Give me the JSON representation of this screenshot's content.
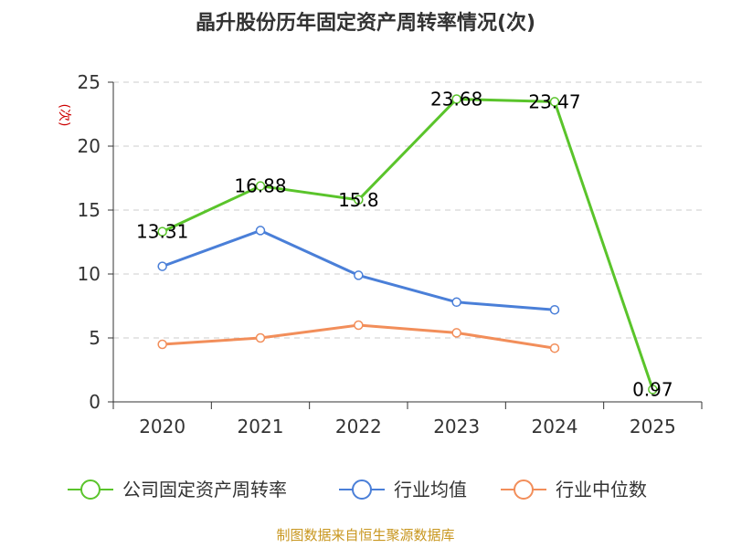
{
  "chart_data": {
    "type": "line",
    "title": "晶升股份历年固定资产周转率情况(次)",
    "ylabel": "(次)",
    "categories": [
      "2020",
      "2021",
      "2022",
      "2023",
      "2024",
      "2025"
    ],
    "ylim": [
      0,
      25
    ],
    "yticks": [
      0,
      5,
      10,
      15,
      20,
      25
    ],
    "grid": true,
    "legend_position": "bottom",
    "series": [
      {
        "name": "公司固定资产周转率",
        "color": "#5ac42b",
        "values": [
          13.31,
          16.88,
          15.8,
          23.68,
          23.47,
          0.97
        ],
        "labels": [
          "13.31",
          "16.88",
          "15.8",
          "23.68",
          "23.47",
          "0.97"
        ]
      },
      {
        "name": "行业均值",
        "color": "#4a7fd8",
        "values": [
          10.6,
          13.4,
          9.9,
          7.8,
          7.2,
          null
        ]
      },
      {
        "name": "行业中位数",
        "color": "#f28e5a",
        "values": [
          4.5,
          5.0,
          6.0,
          5.4,
          4.2,
          null
        ]
      }
    ],
    "source": "制图数据来自恒生聚源数据库"
  }
}
